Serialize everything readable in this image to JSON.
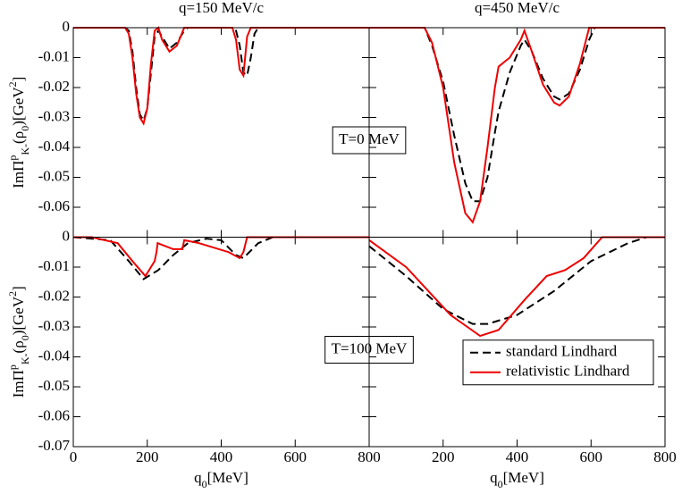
{
  "chart_data": [
    {
      "type": "line",
      "title": "q=150 MeV/c",
      "ylabel": [
        "ImΠ",
        "p",
        "K-",
        "(ρ",
        "0",
        ")[GeV",
        "2",
        "]"
      ],
      "annotation": "T=0 MeV",
      "xlim": [
        0,
        800
      ],
      "xticks": [
        0,
        200,
        400,
        600,
        800
      ],
      "xticklabels": false,
      "ylim": [
        -0.07,
        0
      ],
      "yticks": [
        0,
        -0.01,
        -0.02,
        -0.03,
        -0.04,
        -0.05,
        -0.06
      ],
      "yticklabels": true,
      "series": [
        {
          "color": "#000000",
          "linestyle": "dashed",
          "x": [
            0,
            140,
            150,
            160,
            170,
            180,
            190,
            200,
            210,
            220,
            230,
            240,
            260,
            280,
            300,
            310,
            430,
            440,
            450,
            460,
            470,
            480,
            490,
            500,
            800
          ],
          "values": [
            0,
            0,
            -0.001,
            -0.008,
            -0.02,
            -0.029,
            -0.031,
            -0.027,
            -0.015,
            -0.003,
            -0.001,
            -0.003,
            -0.007,
            -0.005,
            -0.001,
            0,
            0,
            -0.001,
            -0.006,
            -0.015,
            -0.016,
            -0.01,
            -0.002,
            0,
            0
          ]
        },
        {
          "color": "#ee0000",
          "linestyle": "solid",
          "x": [
            0,
            140,
            150,
            160,
            170,
            180,
            190,
            200,
            210,
            220,
            230,
            240,
            260,
            280,
            300,
            310,
            430,
            440,
            450,
            460,
            470,
            480,
            490,
            500,
            800
          ],
          "values": [
            0,
            0,
            -0.002,
            -0.01,
            -0.022,
            -0.03,
            -0.032,
            -0.027,
            -0.012,
            -0.001,
            0,
            -0.004,
            -0.008,
            -0.006,
            0,
            0,
            0,
            -0.004,
            -0.014,
            -0.016,
            -0.003,
            0,
            0,
            0,
            0
          ]
        }
      ]
    },
    {
      "type": "line",
      "title": "q=450 MeV/c",
      "xlim": [
        0,
        800
      ],
      "xticks": [
        0,
        200,
        400,
        600,
        800
      ],
      "xticklabels": false,
      "ylim": [
        -0.07,
        0
      ],
      "yticks": [
        0,
        -0.01,
        -0.02,
        -0.03,
        -0.04,
        -0.05,
        -0.06
      ],
      "yticklabels": false,
      "series": [
        {
          "color": "#000000",
          "linestyle": "dashed",
          "x": [
            0,
            150,
            170,
            200,
            230,
            260,
            280,
            300,
            320,
            340,
            350,
            380,
            410,
            420,
            440,
            470,
            500,
            515,
            540,
            570,
            595,
            610,
            800
          ],
          "values": [
            0,
            0,
            -0.006,
            -0.018,
            -0.036,
            -0.052,
            -0.058,
            -0.058,
            -0.05,
            -0.035,
            -0.028,
            -0.015,
            -0.006,
            -0.004,
            -0.008,
            -0.017,
            -0.023,
            -0.024,
            -0.022,
            -0.014,
            -0.004,
            0,
            0
          ]
        },
        {
          "color": "#ee0000",
          "linestyle": "solid",
          "x": [
            0,
            150,
            170,
            200,
            230,
            260,
            280,
            300,
            320,
            340,
            350,
            380,
            410,
            420,
            440,
            470,
            500,
            515,
            540,
            570,
            595,
            610,
            800
          ],
          "values": [
            0,
            0,
            -0.005,
            -0.02,
            -0.045,
            -0.062,
            -0.065,
            -0.058,
            -0.04,
            -0.02,
            -0.013,
            -0.01,
            -0.004,
            -0.001,
            -0.008,
            -0.019,
            -0.025,
            -0.026,
            -0.023,
            -0.012,
            0,
            0,
            0
          ]
        }
      ]
    },
    {
      "type": "line",
      "ylabel": [
        "ImΠ",
        "p",
        "K-",
        "(ρ",
        "0",
        ")[GeV",
        "2",
        "]"
      ],
      "xlabel": [
        "q",
        "0",
        "[MeV]"
      ],
      "annotation": "T=100 MeV",
      "xlim": [
        0,
        800
      ],
      "xticks": [
        0,
        200,
        400,
        600,
        800
      ],
      "xticklabels": true,
      "ylim": [
        -0.07,
        0
      ],
      "yticks": [
        0,
        -0.01,
        -0.02,
        -0.03,
        -0.04,
        -0.05,
        -0.06,
        -0.07
      ],
      "yticklabels": true,
      "series": [
        {
          "color": "#000000",
          "linestyle": "dashed",
          "x": [
            0,
            100,
            150,
            190,
            230,
            270,
            310,
            360,
            400,
            440,
            460,
            500,
            540,
            800
          ],
          "values": [
            0,
            -0.001,
            -0.008,
            -0.014,
            -0.011,
            -0.006,
            -0.002,
            -0.0005,
            -0.001,
            -0.006,
            -0.007,
            -0.002,
            0,
            0
          ]
        },
        {
          "color": "#ee0000",
          "linestyle": "solid",
          "x": [
            0,
            50,
            120,
            160,
            195,
            220,
            225,
            228,
            270,
            295,
            300,
            340,
            420,
            450,
            460,
            470,
            800
          ],
          "values": [
            0,
            0,
            -0.002,
            -0.008,
            -0.013,
            -0.008,
            -0.005,
            -0.002,
            -0.004,
            -0.004,
            -0.001,
            -0.002,
            -0.005,
            -0.007,
            -0.005,
            0,
            0
          ]
        }
      ]
    },
    {
      "type": "line",
      "xlabel": [
        "q",
        "0",
        "[MeV]"
      ],
      "legend": "center right",
      "xlim": [
        0,
        800
      ],
      "xticks": [
        200,
        400,
        600,
        800
      ],
      "xticklabels": true,
      "ylim": [
        -0.07,
        0
      ],
      "yticks": [
        0,
        -0.01,
        -0.02,
        -0.03,
        -0.04,
        -0.05,
        -0.06,
        -0.07
      ],
      "yticklabels": false,
      "series": [
        {
          "name": "standard Lindhard",
          "color": "#000000",
          "linestyle": "dashed",
          "x": [
            0,
            100,
            200,
            280,
            320,
            400,
            500,
            600,
            700,
            750,
            800
          ],
          "values": [
            -0.003,
            -0.013,
            -0.024,
            -0.029,
            -0.029,
            -0.026,
            -0.018,
            -0.008,
            -0.002,
            0,
            0
          ]
        },
        {
          "name": "relativistic Lindhard",
          "color": "#ee0000",
          "linestyle": "solid",
          "x": [
            0,
            100,
            220,
            300,
            350,
            420,
            480,
            530,
            580,
            630,
            800
          ],
          "values": [
            -0.001,
            -0.01,
            -0.026,
            -0.033,
            -0.031,
            -0.021,
            -0.013,
            -0.011,
            -0.007,
            0,
            0
          ]
        }
      ]
    }
  ]
}
